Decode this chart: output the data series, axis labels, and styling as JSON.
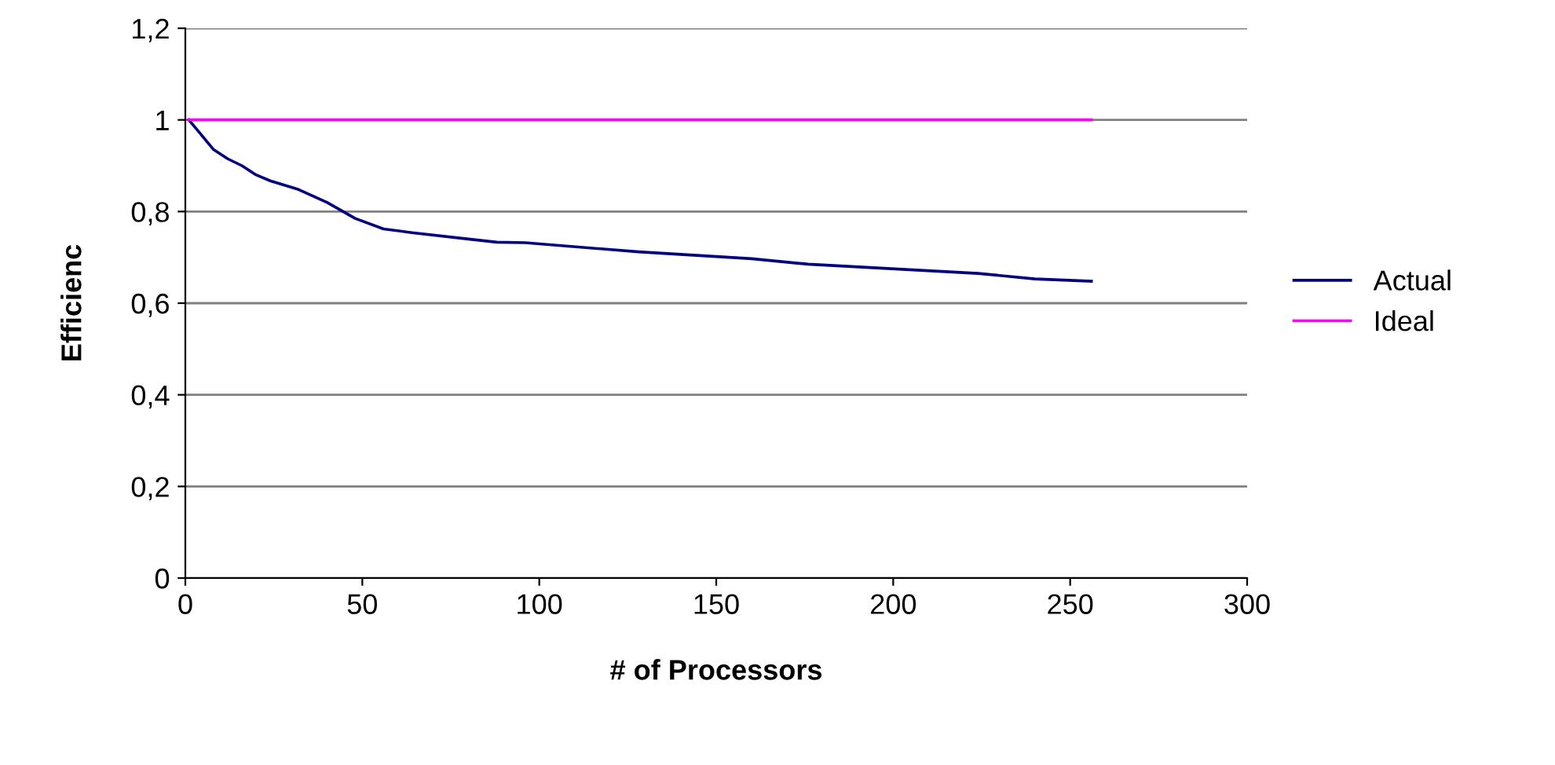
{
  "chart_data": {
    "type": "line",
    "xlabel": "# of Processors",
    "ylabel": "Efficienc",
    "series": [
      {
        "name": "Actual",
        "color": "#000080",
        "x": [
          1,
          8,
          12,
          16,
          20,
          24,
          32,
          40,
          48,
          56,
          64,
          80,
          88,
          96,
          128,
          160,
          176,
          224,
          240,
          256
        ],
        "values": [
          1,
          0.935,
          0.915,
          0.9,
          0.88,
          0.867,
          0.848,
          0.82,
          0.785,
          0.762,
          0.754,
          0.74,
          0.733,
          0.732,
          0.712,
          0.697,
          0.685,
          0.665,
          0.653,
          0.648
        ]
      },
      {
        "name": "Ideal",
        "color": "#ff00ff",
        "x": [
          1,
          256
        ],
        "values": [
          1,
          1
        ]
      }
    ],
    "xlim": [
      0,
      300
    ],
    "xticks": [
      0,
      50,
      100,
      150,
      200,
      250,
      300
    ],
    "ylim": [
      0,
      1.2
    ],
    "yticks": [
      {
        "value": 0,
        "label": "0"
      },
      {
        "value": 0.2,
        "label": "0,2"
      },
      {
        "value": 0.4,
        "label": "0,4"
      },
      {
        "value": 0.6,
        "label": "0,6"
      },
      {
        "value": 0.8,
        "label": "0,8"
      },
      {
        "value": 1,
        "label": "1"
      },
      {
        "value": 1.2,
        "label": "1,2"
      }
    ],
    "grid": "y",
    "legend": "right",
    "marker": "none",
    "line_style": "solid"
  }
}
